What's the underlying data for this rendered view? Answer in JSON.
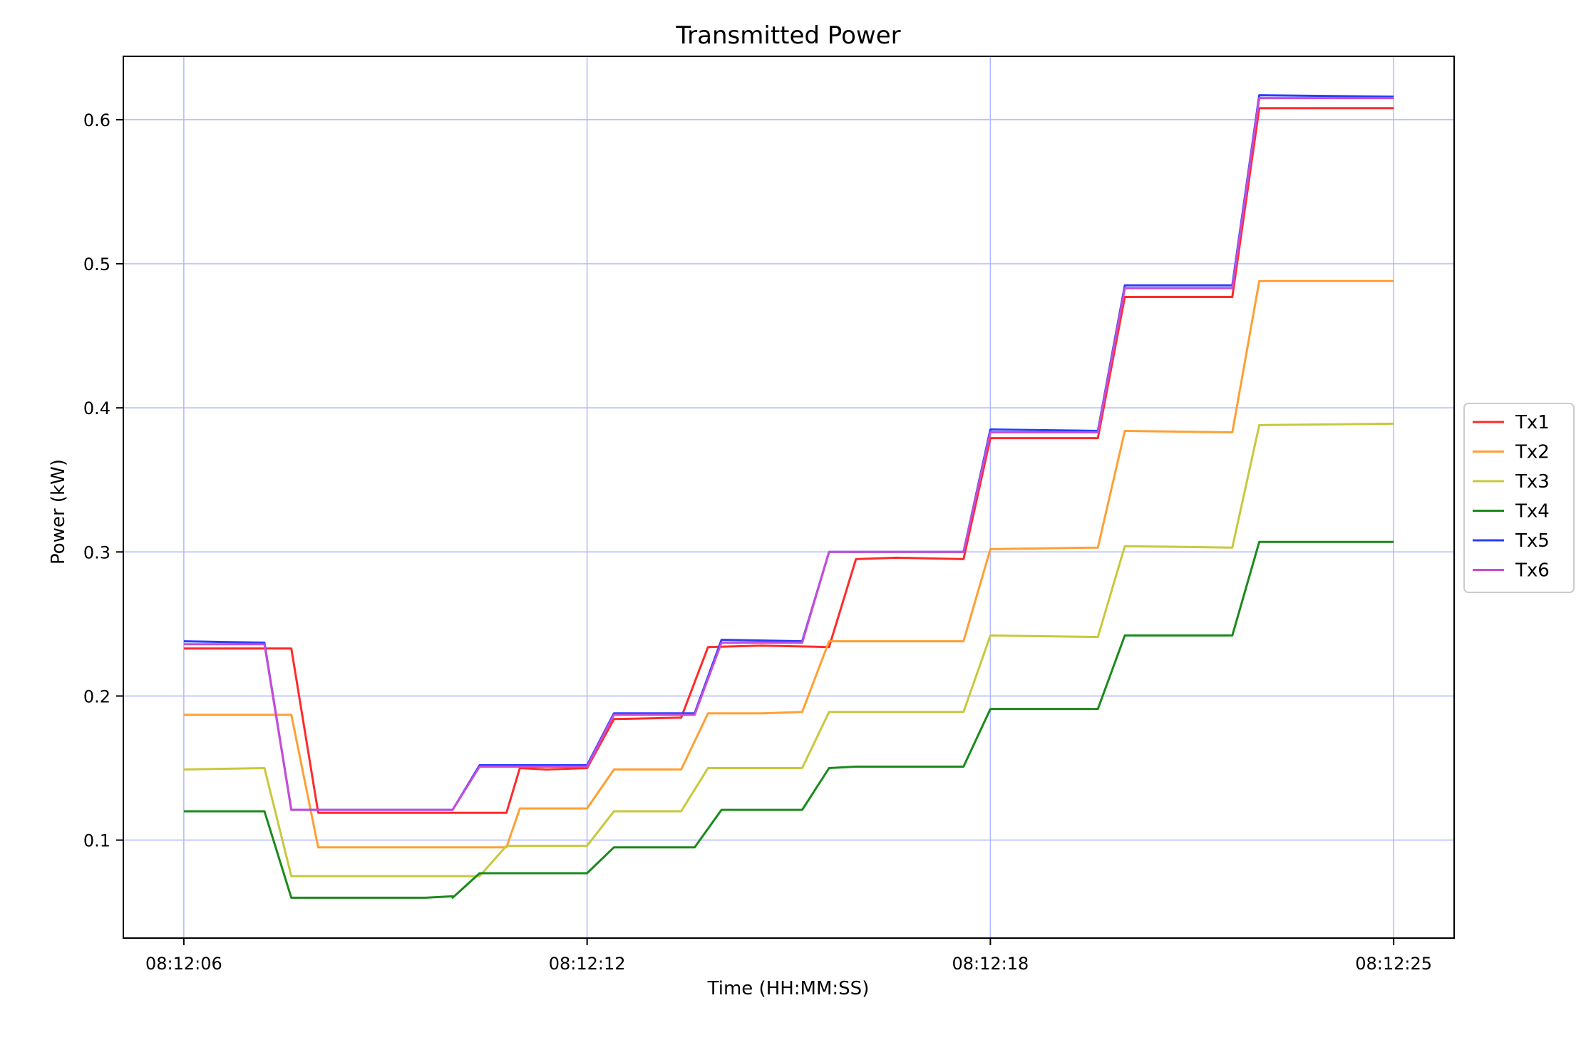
{
  "chart_data": {
    "type": "line",
    "title": "Transmitted Power",
    "xlabel": "Time (HH:MM:SS)",
    "ylabel": "Power (kW)",
    "x_ticks": [
      {
        "value": 0,
        "label": "08:12:06"
      },
      {
        "value": 6,
        "label": "08:12:12"
      },
      {
        "value": 12,
        "label": "08:12:18"
      },
      {
        "value": 18,
        "label": "08:12:25"
      }
    ],
    "y_ticks": [
      {
        "value": 0.1,
        "label": "0.1"
      },
      {
        "value": 0.2,
        "label": "0.2"
      },
      {
        "value": 0.3,
        "label": "0.3"
      },
      {
        "value": 0.4,
        "label": "0.4"
      },
      {
        "value": 0.5,
        "label": "0.5"
      },
      {
        "value": 0.6,
        "label": "0.6"
      }
    ],
    "xlim": [
      -0.9,
      18.9
    ],
    "ylim": [
      0.032,
      0.644
    ],
    "grid": true,
    "grid_color": "#b0b8ff",
    "legend_position": "right",
    "series": [
      {
        "name": "Tx1",
        "color": "#ff2a2a",
        "points": [
          [
            0,
            0.233
          ],
          [
            1.2,
            0.233
          ],
          [
            1.6,
            0.233
          ],
          [
            2.0,
            0.119
          ],
          [
            4.4,
            0.119
          ],
          [
            4.8,
            0.119
          ],
          [
            5.0,
            0.15
          ],
          [
            5.4,
            0.149
          ],
          [
            6.0,
            0.15
          ],
          [
            6.4,
            0.184
          ],
          [
            7.4,
            0.185
          ],
          [
            7.8,
            0.234
          ],
          [
            8.6,
            0.235
          ],
          [
            9.6,
            0.234
          ],
          [
            10.0,
            0.295
          ],
          [
            10.6,
            0.296
          ],
          [
            11.6,
            0.295
          ],
          [
            12.0,
            0.379
          ],
          [
            13.6,
            0.379
          ],
          [
            14.0,
            0.477
          ],
          [
            15.4,
            0.477
          ],
          [
            15.6,
            0.477
          ],
          [
            16.0,
            0.608
          ],
          [
            18.0,
            0.608
          ]
        ]
      },
      {
        "name": "Tx2",
        "color": "#ff9f33",
        "points": [
          [
            0,
            0.187
          ],
          [
            1.6,
            0.187
          ],
          [
            2.0,
            0.095
          ],
          [
            4.4,
            0.095
          ],
          [
            4.8,
            0.095
          ],
          [
            5.0,
            0.122
          ],
          [
            6.0,
            0.122
          ],
          [
            6.4,
            0.149
          ],
          [
            7.4,
            0.149
          ],
          [
            7.8,
            0.188
          ],
          [
            8.6,
            0.188
          ],
          [
            9.2,
            0.189
          ],
          [
            9.6,
            0.238
          ],
          [
            11.6,
            0.238
          ],
          [
            12.0,
            0.302
          ],
          [
            13.6,
            0.303
          ],
          [
            14.0,
            0.384
          ],
          [
            15.6,
            0.383
          ],
          [
            16.0,
            0.488
          ],
          [
            18.0,
            0.488
          ]
        ]
      },
      {
        "name": "Tx3",
        "color": "#c8c83c",
        "points": [
          [
            0,
            0.149
          ],
          [
            1.2,
            0.15
          ],
          [
            1.6,
            0.075
          ],
          [
            4.4,
            0.075
          ],
          [
            4.8,
            0.096
          ],
          [
            6.0,
            0.096
          ],
          [
            6.4,
            0.12
          ],
          [
            7.4,
            0.12
          ],
          [
            7.8,
            0.15
          ],
          [
            9.2,
            0.15
          ],
          [
            9.6,
            0.189
          ],
          [
            11.6,
            0.189
          ],
          [
            12.0,
            0.242
          ],
          [
            13.6,
            0.241
          ],
          [
            14.0,
            0.304
          ],
          [
            15.6,
            0.303
          ],
          [
            16.0,
            0.388
          ],
          [
            18.0,
            0.389
          ]
        ]
      },
      {
        "name": "Tx4",
        "color": "#1a8a1a",
        "points": [
          [
            0,
            0.12
          ],
          [
            1.2,
            0.12
          ],
          [
            1.6,
            0.06
          ],
          [
            3.6,
            0.06
          ],
          [
            4.0,
            0.061
          ],
          [
            4.0,
            0.06
          ],
          [
            4.4,
            0.077
          ],
          [
            6.0,
            0.077
          ],
          [
            6.4,
            0.095
          ],
          [
            7.6,
            0.095
          ],
          [
            8.0,
            0.121
          ],
          [
            9.2,
            0.121
          ],
          [
            9.6,
            0.15
          ],
          [
            10.0,
            0.151
          ],
          [
            10.6,
            0.151
          ],
          [
            11.6,
            0.151
          ],
          [
            12.0,
            0.191
          ],
          [
            13.6,
            0.191
          ],
          [
            14.0,
            0.242
          ],
          [
            15.6,
            0.242
          ],
          [
            16.0,
            0.307
          ],
          [
            18.0,
            0.307
          ]
        ]
      },
      {
        "name": "Tx5",
        "color": "#2a3cff",
        "points": [
          [
            0,
            0.238
          ],
          [
            1.2,
            0.237
          ],
          [
            1.6,
            0.121
          ],
          [
            4.0,
            0.121
          ],
          [
            4.4,
            0.152
          ],
          [
            6.0,
            0.152
          ],
          [
            6.4,
            0.188
          ],
          [
            7.6,
            0.188
          ],
          [
            8.0,
            0.239
          ],
          [
            9.2,
            0.238
          ],
          [
            9.6,
            0.3
          ],
          [
            11.6,
            0.3
          ],
          [
            12.0,
            0.385
          ],
          [
            13.6,
            0.384
          ],
          [
            14.0,
            0.485
          ],
          [
            15.6,
            0.485
          ],
          [
            16.0,
            0.617
          ],
          [
            18.0,
            0.616
          ]
        ]
      },
      {
        "name": "Tx6",
        "color": "#c84cd6",
        "points": [
          [
            0,
            0.236
          ],
          [
            1.2,
            0.236
          ],
          [
            1.6,
            0.121
          ],
          [
            4.0,
            0.121
          ],
          [
            4.4,
            0.151
          ],
          [
            6.0,
            0.151
          ],
          [
            6.4,
            0.187
          ],
          [
            7.6,
            0.187
          ],
          [
            8.0,
            0.237
          ],
          [
            9.2,
            0.237
          ],
          [
            9.6,
            0.3
          ],
          [
            11.6,
            0.3
          ],
          [
            12.0,
            0.383
          ],
          [
            13.6,
            0.383
          ],
          [
            14.0,
            0.483
          ],
          [
            15.6,
            0.483
          ],
          [
            16.0,
            0.615
          ],
          [
            18.0,
            0.615
          ]
        ]
      }
    ]
  }
}
